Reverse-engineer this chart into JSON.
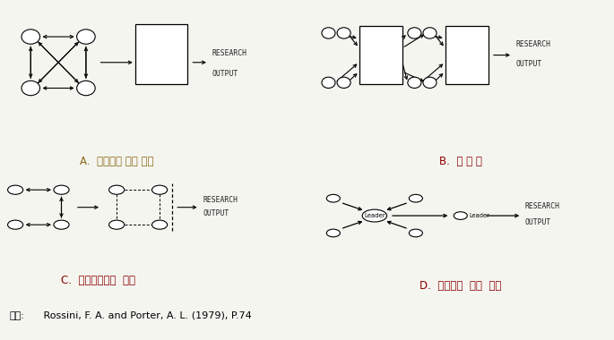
{
  "title_A": "A.  공통그룹 학습 모형",
  "title_B": "B.  모 델 링",
  "title_C": "C.  전문가들간의  협업",
  "title_D": "D.  지도자에  의한  통합",
  "title_A_color": "#8B6914",
  "title_BCD_color": "#8B0000",
  "source_label": "자료:",
  "source_rest": " Rossini, F. A. and Porter, A. L. (1979), P.74",
  "bg_color": "#f5f5f0"
}
